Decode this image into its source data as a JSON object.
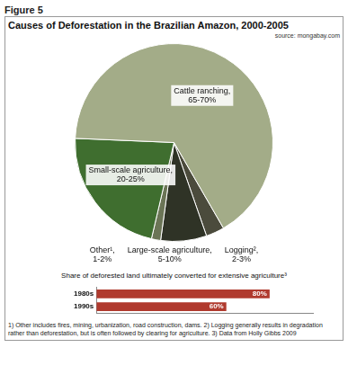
{
  "header": "Figure 5",
  "chart_data": [
    {
      "type": "pie",
      "title": "Causes of Deforestation in the Brazilian Amazon, 2000-2005",
      "source": "source: mongabay.com",
      "categories": [
        "Logging², 2-3%",
        "Large-scale agriculture, 5-10%",
        "Other¹, 1-2%",
        "Small-scale agriculture, 20-25%",
        "Cattle ranching, 65-70%"
      ],
      "values": [
        3,
        7.5,
        1.5,
        22,
        66
      ],
      "colors": [
        "#4b4b3c",
        "#2f3326",
        "#6b7556",
        "#3f6e2f",
        "#a3ac88"
      ]
    },
    {
      "type": "bar",
      "orientation": "horizontal",
      "title": "Share of deforested land ultimately converted for extensive agriculture³",
      "categories": [
        "1980s",
        "1990s"
      ],
      "values": [
        80,
        60
      ],
      "value_labels": [
        "80%",
        "60%"
      ],
      "data_labels": true,
      "color": "#b03a2e",
      "xlim": [
        0,
        100
      ],
      "tick_labels": "y",
      "grid": false
    }
  ],
  "footnote": "1) Other includes fires, mining, urbanization, road construction, dams. 2) Logging generally results in degradation rather than deforestation, but is often followed by clearing for agriculture. 3) Data from Holly Gibbs 2009"
}
